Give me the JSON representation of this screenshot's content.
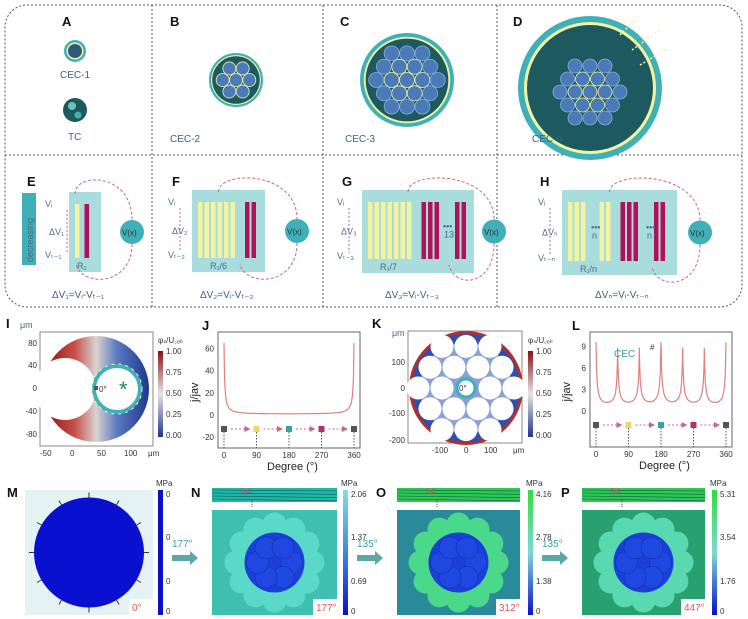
{
  "top": {
    "panels": [
      {
        "letter": "A",
        "captions": [
          "CEC-1",
          "TC"
        ]
      },
      {
        "letter": "B",
        "captions": [
          "CEC-2"
        ]
      },
      {
        "letter": "C",
        "captions": [
          "CEC-3"
        ]
      },
      {
        "letter": "D",
        "captions": [
          "CEC-n"
        ]
      }
    ],
    "circuits": [
      {
        "letter": "E",
        "vi": "Vᵢ",
        "dv": "ΔV₁",
        "vt": "Vₜ₋₁",
        "r": "R₁",
        "count": "",
        "formula": "ΔV₁=Vᵢ-Vₜ₋₁",
        "side_label": "decreasing",
        "source": "V(x)"
      },
      {
        "letter": "F",
        "vi": "Vᵢ",
        "dv": "ΔV₂",
        "vt": "Vₜ₋₂",
        "r": "R₁/6",
        "count": "",
        "formula": "ΔV₂=Vᵢ-Vₜ₋₂",
        "source": "V(x)"
      },
      {
        "letter": "G",
        "vi": "Vᵢ",
        "dv": "ΔV₃",
        "vt": "Vₜ₋₃",
        "r": "R₁/7",
        "count": "13",
        "formula": "ΔV₃=Vᵢ-Vₜ₋₃",
        "source": "V(x)"
      },
      {
        "letter": "H",
        "vi": "Vᵢ",
        "dv": "ΔVₙ",
        "vt": "Vₜ₋ₙ",
        "r": "R₁/n",
        "count": "n",
        "count2": "n",
        "formula": "ΔVₙ=Vᵢ-Vₜ₋ₙ",
        "source": "V(x)"
      }
    ]
  },
  "panel_I": {
    "letter": "I",
    "unit": "μm",
    "x_ticks": [
      "-50",
      "0",
      "50",
      "100"
    ],
    "y_ticks": [
      "80",
      "40",
      "0",
      "-40",
      "-80"
    ],
    "x_unit": "μm",
    "cb_title": "φₛ/U꜀ₑₗₗ",
    "cb_ticks": [
      "1.00",
      "0.75",
      "0.50",
      "0.25",
      "0.00"
    ],
    "angle": "0°"
  },
  "panel_K": {
    "letter": "K",
    "unit": "μm",
    "x_ticks": [
      "-100",
      "0",
      "100"
    ],
    "y_ticks": [
      "100",
      "0",
      "-100",
      "-200"
    ],
    "x_unit": "μm",
    "cb_title": "φₛ/U꜀ₑₗₗ",
    "cb_ticks": [
      "1.00",
      "0.75",
      "0.50",
      "0.25",
      "0.00"
    ],
    "angle": "0°"
  },
  "chart_data": [
    {
      "panel": "J",
      "type": "line",
      "xlabel": "Degree (°)",
      "ylabel": "j/jav",
      "xlim": [
        0,
        360
      ],
      "ylim": [
        -30,
        75
      ],
      "x_ticks": [
        "0",
        "90",
        "180",
        "270",
        "360"
      ],
      "y_ticks": [
        "60",
        "40",
        "20",
        "0",
        "-20"
      ],
      "peaks": [
        {
          "x": 0,
          "y": 65
        },
        {
          "x": 360,
          "y": 65
        }
      ],
      "baseline": 0.5,
      "marker_degrees": [
        0,
        90,
        180,
        270,
        360
      ]
    },
    {
      "panel": "L",
      "type": "line",
      "xlabel": "Degree (°)",
      "ylabel": "j/jav",
      "xlim": [
        0,
        360
      ],
      "ylim": [
        -5,
        11
      ],
      "annotation": "CEC",
      "annotation_mark": "#",
      "x_ticks": [
        "0",
        "90",
        "180",
        "270",
        "360"
      ],
      "y_ticks": [
        "9",
        "6",
        "3",
        "0"
      ],
      "peaks": [
        {
          "x": 0,
          "y": 9.6
        },
        {
          "x": 60,
          "y": 8.3
        },
        {
          "x": 120,
          "y": 8.3
        },
        {
          "x": 180,
          "y": 9.6
        },
        {
          "x": 240,
          "y": 8.3
        },
        {
          "x": 300,
          "y": 8.3
        },
        {
          "x": 360,
          "y": 9.6
        }
      ],
      "baseline": 0.2,
      "marker_degrees": [
        0,
        90,
        180,
        270,
        360
      ]
    }
  ],
  "stress": [
    {
      "letter": "M",
      "unit": "MPa",
      "ticks": [
        "0",
        "0",
        "0",
        "0"
      ],
      "angle": "0°"
    },
    {
      "letter": "N",
      "unit": "MPa",
      "ticks": [
        "2.06",
        "1.37",
        "0.69",
        "0"
      ],
      "angle": "177°",
      "step": "177°"
    },
    {
      "letter": "O",
      "unit": "MPa",
      "ticks": [
        "4.16",
        "2.78",
        "1.38",
        "0"
      ],
      "angle": "312°",
      "step": "135°"
    },
    {
      "letter": "P",
      "unit": "MPa",
      "ticks": [
        "5.31",
        "3.54",
        "1.76",
        "0"
      ],
      "angle": "447°",
      "step": "135°"
    }
  ],
  "colors": {
    "teal": "#3fb0b8",
    "panel_bg": "#a9dcdc",
    "yellow": "#f4f3a0",
    "crimson": "#b0115a",
    "dashed": "#c46a80",
    "navy": "#1b3f8c",
    "red": "#b21c20",
    "blue": "#2f4fae",
    "mesh_blue": "#0a1fd6",
    "cyan": "#4fe0c8",
    "green": "#3ad94a"
  }
}
